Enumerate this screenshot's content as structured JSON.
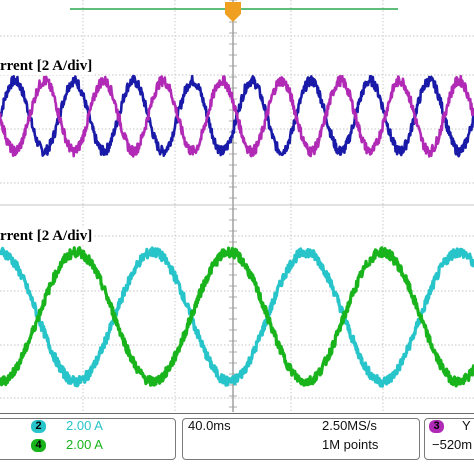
{
  "chart_data": [
    {
      "type": "line",
      "title": "rrent [2 A/div]",
      "x_range": [
        0,
        40
      ],
      "ylim": [
        -4,
        4
      ],
      "grid": true,
      "series": [
        {
          "color": "#1a1aa8",
          "amplitude": 1.2,
          "periods": 8,
          "phase_deg": 0,
          "offset": 0
        },
        {
          "color": "#b02ab6",
          "amplitude": 1.2,
          "periods": 8,
          "phase_deg": 180,
          "offset": 0
        }
      ]
    },
    {
      "type": "line",
      "title": "rrent [2 A/div]",
      "x_range": [
        0,
        40
      ],
      "ylim": [
        -4,
        4
      ],
      "grid": true,
      "series": [
        {
          "color": "#27c4c9",
          "amplitude": 2.0,
          "periods": 3.1,
          "phase_deg": 90,
          "offset": -0.15
        },
        {
          "color": "#19b31c",
          "amplitude": 2.0,
          "periods": 3.1,
          "phase_deg": -90,
          "offset": -0.15
        }
      ]
    }
  ],
  "status": {
    "ch2_badge": "2",
    "ch2_scale": "2.00 A",
    "ch4_badge": "4",
    "ch4_scale": "2.00 A",
    "timebase": "40.0ms",
    "sample_rate": "2.50MS/s",
    "record_length": "1M points",
    "ch3_badge": "3",
    "ch3_partial": "Y",
    "trigger_partial": "−520m"
  },
  "colors": {
    "ch2": "#27c4c9",
    "ch4": "#19b31c",
    "ch3": "#b02ab6",
    "trigger": "#f0a020"
  }
}
